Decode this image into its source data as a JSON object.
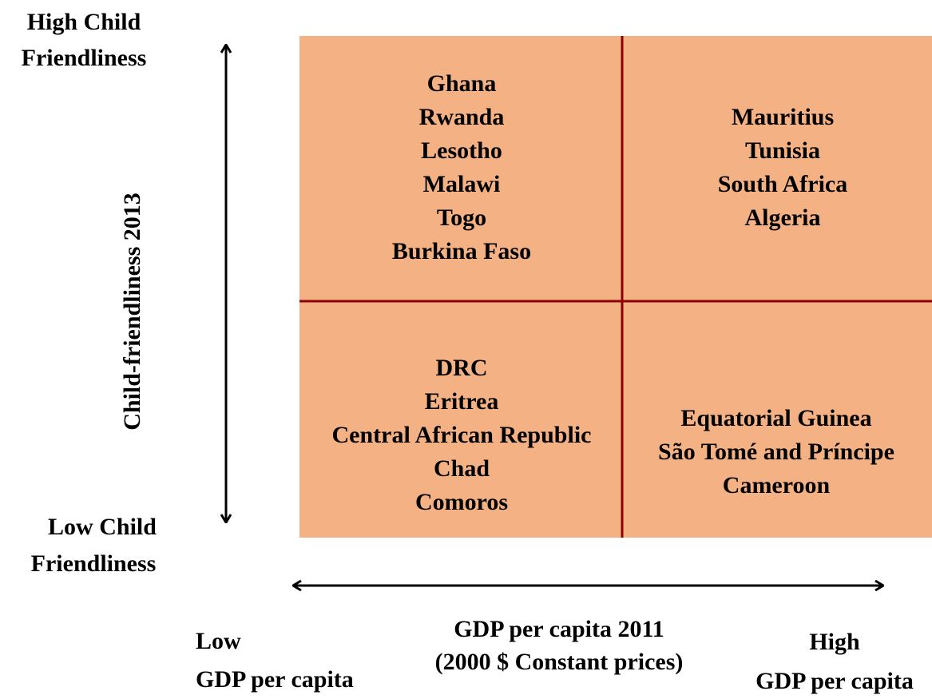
{
  "y_axis": {
    "label": "Child-friendliness 2013",
    "high_label": [
      "High Child",
      "Friendliness"
    ],
    "low_label": [
      "Low Child",
      "Friendliness"
    ]
  },
  "x_axis": {
    "label": [
      "GDP per capita 2011",
      "(2000 $ Constant prices)"
    ],
    "low_label": [
      "Low",
      "GDP per capita"
    ],
    "high_label": [
      "High",
      "GDP per capita"
    ]
  },
  "quadrants": [
    {
      "countries": [
        "Ghana",
        "Rwanda",
        "Lesotho",
        "Malawi",
        "Togo",
        "Burkina Faso"
      ]
    },
    {
      "countries": [
        "Mauritius",
        "Tunisia",
        "South Africa",
        "Algeria"
      ]
    },
    {
      "countries": [
        "DRC",
        "Eritrea",
        "Central African Republic",
        "Chad",
        "Comoros"
      ]
    },
    {
      "countries": [
        "Equatorial Guinea",
        "São Tomé and Príncipe",
        "Cameroon"
      ]
    }
  ]
}
